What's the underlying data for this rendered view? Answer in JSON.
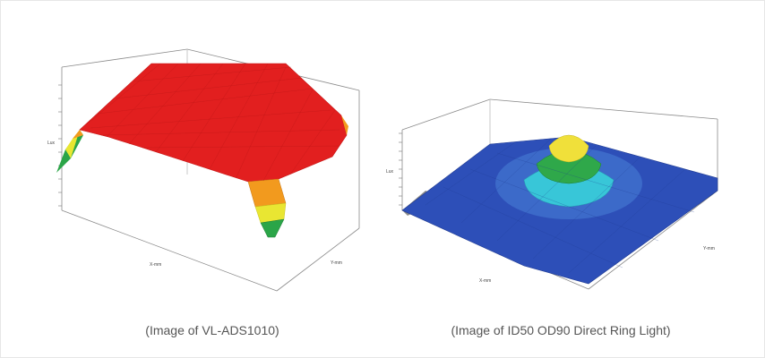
{
  "captions": {
    "left": "(Image of VL-ADS1010)",
    "right": "(Image of ID50 OD90 Direct Ring Light)"
  },
  "chart_data": [
    {
      "type": "surface3d",
      "title": "",
      "xlabel": "X-mm",
      "ylabel": "Y-mm",
      "zlabel": "Lux",
      "shape": "flat-top",
      "colors": [
        "#1d8c3a",
        "#e9e632",
        "#f29a1e",
        "#e21f1f"
      ]
    },
    {
      "type": "surface3d",
      "title": "",
      "xlabel": "X-mm",
      "ylabel": "Y-mm",
      "zlabel": "Lux",
      "shape": "center-peak",
      "colors": [
        "#2d4fb8",
        "#4a86d6",
        "#38c6d8",
        "#2fa84a",
        "#f0e03a"
      ]
    }
  ]
}
